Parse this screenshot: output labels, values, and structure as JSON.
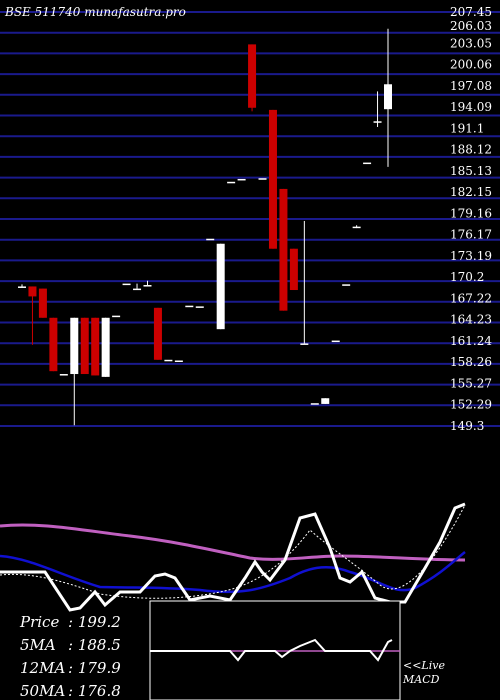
{
  "header": {
    "title": "BSE 511740  munafasutra.pro"
  },
  "colors": {
    "background": "#000000",
    "grid": "#1a1a8c",
    "up": "#ffffff",
    "down": "#cc0000",
    "ma_purple": "#c060c0",
    "ma_blue": "#1010d0",
    "price_line": "#ffffff"
  },
  "chart_data": {
    "type": "candlestick",
    "title": "BSE 511740  munafasutra.pro",
    "yaxis_ticks": [
      "207.45",
      "206.03",
      "203.05",
      "200.06",
      "197.08",
      "194.09",
      "191.1",
      "188.12",
      "185.13",
      "182.15",
      "179.16",
      "176.17",
      "173.19",
      "170.2",
      "167.22",
      "164.23",
      "161.24",
      "158.26",
      "155.27",
      "152.29",
      "149.3"
    ],
    "ylim": [
      149.3,
      207.45
    ],
    "grid": true,
    "candles": [
      {
        "o": 168.9,
        "h": 169.2,
        "c": 168.9,
        "l": 168.9
      },
      {
        "o": 168.9,
        "h": 168.9,
        "c": 167.5,
        "l": 160.7
      },
      {
        "o": 168.6,
        "h": 168.6,
        "c": 164.5,
        "l": 164.5
      },
      {
        "o": 164.5,
        "h": 164.5,
        "c": 157.0,
        "l": 157.0
      },
      {
        "o": 156.6,
        "h": 156.6,
        "c": 156.6,
        "l": 156.6
      },
      {
        "o": 156.6,
        "h": 164.5,
        "c": 164.5,
        "l": 149.4
      },
      {
        "o": 164.5,
        "h": 164.5,
        "c": 156.6,
        "l": 156.6
      },
      {
        "o": 164.5,
        "h": 164.5,
        "c": 156.4,
        "l": 156.4
      },
      {
        "o": 156.2,
        "h": 164.5,
        "c": 164.5,
        "l": 156.2
      },
      {
        "o": 164.8,
        "h": 164.8,
        "c": 164.8,
        "l": 164.8
      },
      {
        "o": 169.3,
        "h": 169.3,
        "c": 169.3,
        "l": 169.3
      },
      {
        "o": 168.6,
        "h": 169.3,
        "c": 168.6,
        "l": 168.6
      },
      {
        "o": 169.1,
        "h": 169.7,
        "c": 169.1,
        "l": 169.1
      },
      {
        "o": 165.9,
        "h": 165.9,
        "c": 158.6,
        "l": 158.6
      },
      {
        "o": 158.6,
        "h": 158.6,
        "c": 158.6,
        "l": 158.6
      },
      {
        "o": 158.5,
        "h": 158.5,
        "c": 158.5,
        "l": 158.5
      },
      {
        "o": 166.2,
        "h": 166.2,
        "c": 166.2,
        "l": 166.2
      },
      {
        "o": 166.1,
        "h": 166.1,
        "c": 166.1,
        "l": 166.1
      },
      {
        "o": 175.6,
        "h": 175.6,
        "c": 175.6,
        "l": 175.6
      },
      {
        "o": 162.9,
        "h": 174.9,
        "c": 174.9,
        "l": 162.9
      },
      {
        "o": 183.6,
        "h": 183.6,
        "c": 183.6,
        "l": 183.6
      },
      {
        "o": 184.0,
        "h": 184.0,
        "c": 184.0,
        "l": 184.0
      },
      {
        "o": 202.9,
        "h": 202.9,
        "c": 194.0,
        "l": 193.5
      },
      {
        "o": 184.1,
        "h": 184.1,
        "c": 184.1,
        "l": 184.1
      },
      {
        "o": 193.7,
        "h": 193.7,
        "c": 174.2,
        "l": 174.2
      },
      {
        "o": 182.6,
        "h": 182.6,
        "c": 165.5,
        "l": 165.5
      },
      {
        "o": 174.2,
        "h": 174.2,
        "c": 168.4,
        "l": 168.4
      },
      {
        "o": 160.9,
        "h": 178.1,
        "c": 160.9,
        "l": 160.9
      },
      {
        "o": 152.5,
        "h": 152.5,
        "c": 152.5,
        "l": 152.5
      },
      {
        "o": 152.4,
        "h": 153.2,
        "c": 153.2,
        "l": 152.4
      },
      {
        "o": 161.3,
        "h": 161.3,
        "c": 161.3,
        "l": 161.3
      },
      {
        "o": 169.2,
        "h": 169.2,
        "c": 169.2,
        "l": 169.2
      },
      {
        "o": 177.3,
        "h": 177.5,
        "c": 177.3,
        "l": 177.1
      },
      {
        "o": 186.3,
        "h": 186.3,
        "c": 186.3,
        "l": 186.3
      },
      {
        "o": 192.1,
        "h": 196.3,
        "c": 192.1,
        "l": 191.3
      },
      {
        "o": 193.8,
        "h": 205.1,
        "c": 197.3,
        "l": 185.7
      }
    ]
  },
  "stats": [
    {
      "label": "Price",
      "value": ": 199.2"
    },
    {
      "label": "5MA",
      "value": ": 188.5"
    },
    {
      "label": "12MA",
      "value": ": 179.9"
    },
    {
      "label": "50MA",
      "value": ": 176.8"
    }
  ],
  "macd": {
    "label1": "<<Live",
    "label2": "MACD"
  }
}
